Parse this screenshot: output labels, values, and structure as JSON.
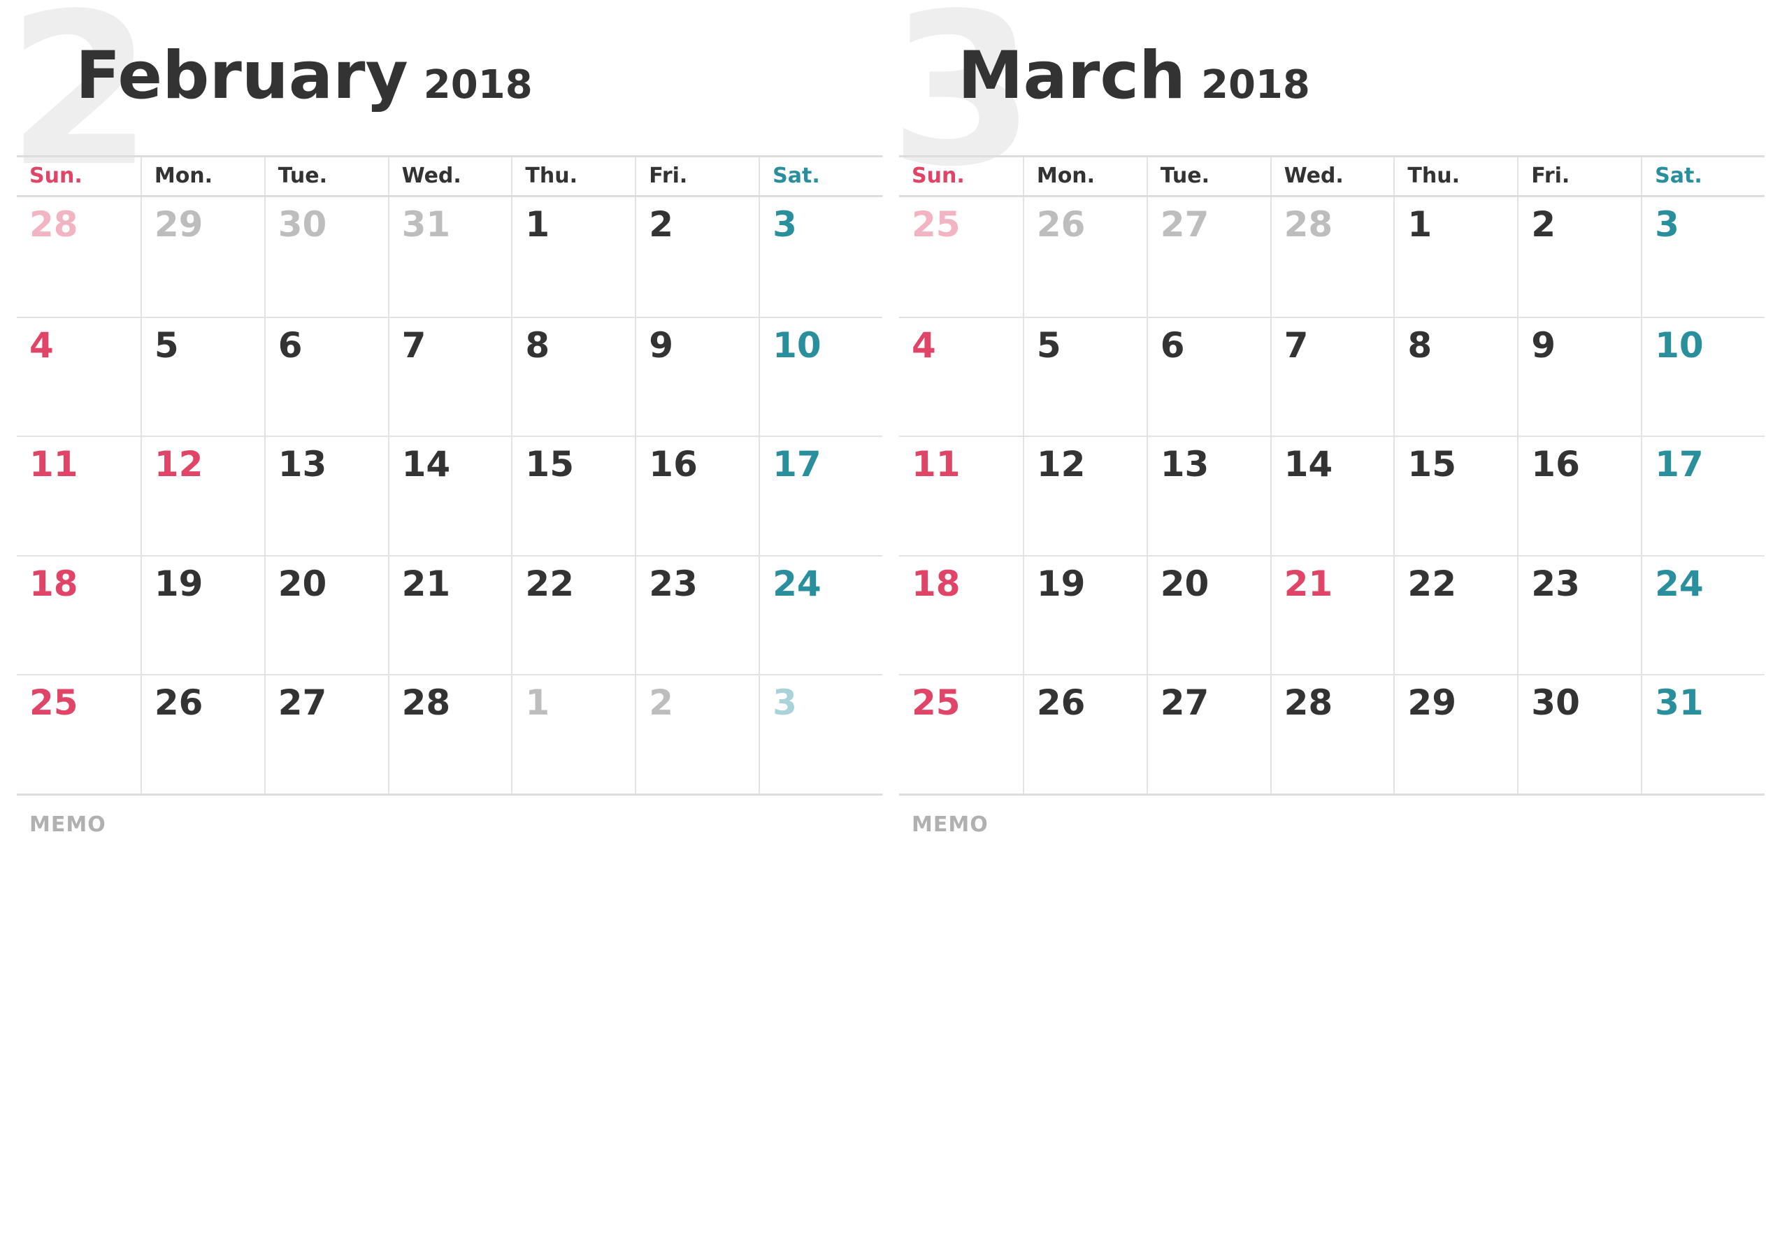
{
  "weekdays": [
    "Sun.",
    "Mon.",
    "Tue.",
    "Wed.",
    "Thu.",
    "Fri.",
    "Sat."
  ],
  "memo_label": "MEMO",
  "colors": {
    "sunday": "#e04466",
    "saturday": "#2a8f9c",
    "text": "#333333",
    "dim": "#bdbdbd",
    "grid": "#e3e3e3"
  },
  "months": [
    {
      "number": "2",
      "name": "February",
      "year": "2018",
      "days": [
        {
          "d": "28",
          "k": "dim sun"
        },
        {
          "d": "29",
          "k": "dim"
        },
        {
          "d": "30",
          "k": "dim"
        },
        {
          "d": "31",
          "k": "dim"
        },
        {
          "d": "1",
          "k": ""
        },
        {
          "d": "2",
          "k": ""
        },
        {
          "d": "3",
          "k": "sat"
        },
        {
          "d": "4",
          "k": "sun"
        },
        {
          "d": "5",
          "k": ""
        },
        {
          "d": "6",
          "k": ""
        },
        {
          "d": "7",
          "k": ""
        },
        {
          "d": "8",
          "k": ""
        },
        {
          "d": "9",
          "k": ""
        },
        {
          "d": "10",
          "k": "sat"
        },
        {
          "d": "11",
          "k": "sun"
        },
        {
          "d": "12",
          "k": "hol"
        },
        {
          "d": "13",
          "k": ""
        },
        {
          "d": "14",
          "k": ""
        },
        {
          "d": "15",
          "k": ""
        },
        {
          "d": "16",
          "k": ""
        },
        {
          "d": "17",
          "k": "sat"
        },
        {
          "d": "18",
          "k": "sun"
        },
        {
          "d": "19",
          "k": ""
        },
        {
          "d": "20",
          "k": ""
        },
        {
          "d": "21",
          "k": ""
        },
        {
          "d": "22",
          "k": ""
        },
        {
          "d": "23",
          "k": ""
        },
        {
          "d": "24",
          "k": "sat"
        },
        {
          "d": "25",
          "k": "sun"
        },
        {
          "d": "26",
          "k": ""
        },
        {
          "d": "27",
          "k": ""
        },
        {
          "d": "28",
          "k": ""
        },
        {
          "d": "1",
          "k": "dim"
        },
        {
          "d": "2",
          "k": "dim"
        },
        {
          "d": "3",
          "k": "dim sat"
        }
      ]
    },
    {
      "number": "3",
      "name": "March",
      "year": "2018",
      "days": [
        {
          "d": "25",
          "k": "dim sun"
        },
        {
          "d": "26",
          "k": "dim"
        },
        {
          "d": "27",
          "k": "dim"
        },
        {
          "d": "28",
          "k": "dim"
        },
        {
          "d": "1",
          "k": ""
        },
        {
          "d": "2",
          "k": ""
        },
        {
          "d": "3",
          "k": "sat"
        },
        {
          "d": "4",
          "k": "sun"
        },
        {
          "d": "5",
          "k": ""
        },
        {
          "d": "6",
          "k": ""
        },
        {
          "d": "7",
          "k": ""
        },
        {
          "d": "8",
          "k": ""
        },
        {
          "d": "9",
          "k": ""
        },
        {
          "d": "10",
          "k": "sat"
        },
        {
          "d": "11",
          "k": "sun"
        },
        {
          "d": "12",
          "k": ""
        },
        {
          "d": "13",
          "k": ""
        },
        {
          "d": "14",
          "k": ""
        },
        {
          "d": "15",
          "k": ""
        },
        {
          "d": "16",
          "k": ""
        },
        {
          "d": "17",
          "k": "sat"
        },
        {
          "d": "18",
          "k": "sun"
        },
        {
          "d": "19",
          "k": ""
        },
        {
          "d": "20",
          "k": ""
        },
        {
          "d": "21",
          "k": "hol"
        },
        {
          "d": "22",
          "k": ""
        },
        {
          "d": "23",
          "k": ""
        },
        {
          "d": "24",
          "k": "sat"
        },
        {
          "d": "25",
          "k": "sun"
        },
        {
          "d": "26",
          "k": ""
        },
        {
          "d": "27",
          "k": ""
        },
        {
          "d": "28",
          "k": ""
        },
        {
          "d": "29",
          "k": ""
        },
        {
          "d": "30",
          "k": ""
        },
        {
          "d": "31",
          "k": "sat"
        }
      ]
    }
  ]
}
